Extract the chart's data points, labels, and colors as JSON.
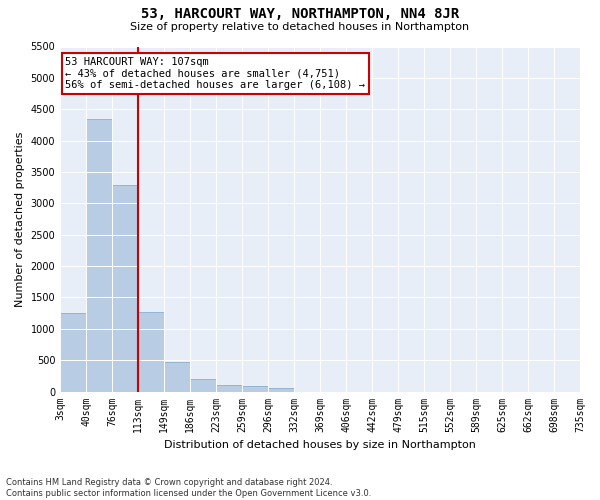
{
  "title": "53, HARCOURT WAY, NORTHAMPTON, NN4 8JR",
  "subtitle": "Size of property relative to detached houses in Northampton",
  "xlabel": "Distribution of detached houses by size in Northampton",
  "ylabel": "Number of detached properties",
  "footer_line1": "Contains HM Land Registry data © Crown copyright and database right 2024.",
  "footer_line2": "Contains public sector information licensed under the Open Government Licence v3.0.",
  "annotation_title": "53 HARCOURT WAY: 107sqm",
  "annotation_line1": "← 43% of detached houses are smaller (4,751)",
  "annotation_line2": "56% of semi-detached houses are larger (6,108) →",
  "property_size_sqm": 107,
  "bar_color": "#b8cce4",
  "bar_edge_color": "#7aa6cc",
  "vline_color": "#cc0000",
  "annotation_box_edgecolor": "#cc0000",
  "bins": [
    3,
    40,
    76,
    113,
    149,
    186,
    223,
    259,
    296,
    332,
    369,
    406,
    442,
    479,
    515,
    552,
    589,
    625,
    662,
    698,
    735
  ],
  "bin_labels": [
    "3sqm",
    "40sqm",
    "76sqm",
    "113sqm",
    "149sqm",
    "186sqm",
    "223sqm",
    "259sqm",
    "296sqm",
    "332sqm",
    "369sqm",
    "406sqm",
    "442sqm",
    "479sqm",
    "515sqm",
    "552sqm",
    "589sqm",
    "625sqm",
    "662sqm",
    "698sqm",
    "735sqm"
  ],
  "counts": [
    1260,
    4350,
    3300,
    1270,
    470,
    200,
    110,
    90,
    60,
    0,
    0,
    0,
    0,
    0,
    0,
    0,
    0,
    0,
    0,
    0
  ],
  "ylim": [
    0,
    5500
  ],
  "yticks": [
    0,
    500,
    1000,
    1500,
    2000,
    2500,
    3000,
    3500,
    4000,
    4500,
    5000,
    5500
  ],
  "figure_bg": "#ffffff",
  "plot_bg_color": "#e8eef8",
  "grid_color": "#ffffff",
  "title_fontsize": 10,
  "subtitle_fontsize": 8,
  "ylabel_fontsize": 8,
  "xlabel_fontsize": 8,
  "tick_fontsize": 7,
  "footer_fontsize": 6,
  "annotation_fontsize": 7.5
}
